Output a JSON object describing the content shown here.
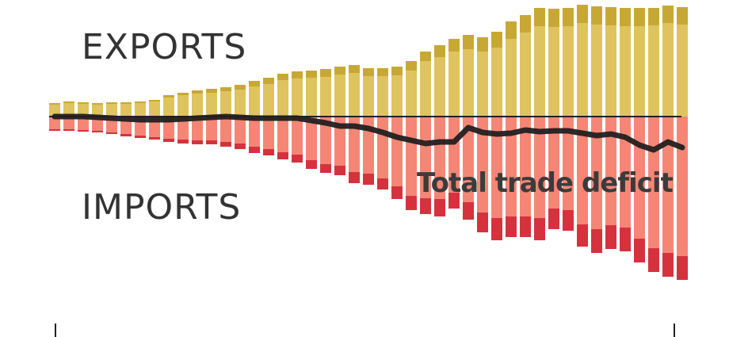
{
  "chart_data": {
    "type": "bar",
    "x": [
      0,
      1,
      2,
      3,
      4,
      5,
      6,
      7,
      8,
      9,
      10,
      11,
      12,
      13,
      14,
      15,
      16,
      17,
      18,
      19,
      20,
      21,
      22,
      23,
      24,
      25,
      26,
      27,
      28,
      29,
      30,
      31,
      32,
      33,
      34,
      35,
      36,
      37,
      38,
      39,
      40,
      41,
      42,
      43,
      44
    ],
    "series": [
      {
        "name": "EXPORTS",
        "role": "exports_base",
        "color": "#dfc35f",
        "values": [
          15,
          17,
          16,
          15,
          16,
          16,
          17,
          19,
          24,
          27,
          29,
          30,
          32,
          34,
          38,
          41,
          46,
          48,
          49,
          50,
          53,
          55,
          51,
          51,
          52,
          58,
          70,
          75,
          82,
          85,
          82,
          87,
          98,
          106,
          114,
          113,
          114,
          118,
          116,
          115,
          114,
          114,
          115,
          118,
          116
        ]
      },
      {
        "name": "EXPORTS",
        "role": "exports_top",
        "color": "#c8a835",
        "values": [
          2,
          2,
          2,
          2,
          2,
          2,
          2,
          2,
          3,
          3,
          4,
          5,
          5,
          6,
          7,
          8,
          8,
          9,
          9,
          10,
          10,
          10,
          10,
          10,
          11,
          12,
          12,
          15,
          16,
          18,
          18,
          20,
          22,
          22,
          23,
          23,
          23,
          23,
          23,
          23,
          23,
          23,
          22,
          22,
          22
        ]
      },
      {
        "name": "IMPORTS",
        "role": "imports_base",
        "color": "#f58676",
        "values": [
          -16,
          -16,
          -17,
          -18,
          -20,
          -22,
          -24,
          -26,
          -28,
          -29,
          -30,
          -30,
          -32,
          -34,
          -38,
          -41,
          -45,
          -48,
          -55,
          -60,
          -62,
          -70,
          -72,
          -78,
          -88,
          -100,
          -103,
          -104,
          -96,
          -108,
          -121,
          -128,
          -126,
          -126,
          -128,
          -116,
          -118,
          -136,
          -142,
          -137,
          -140,
          -154,
          -166,
          -172,
          -176
        ]
      },
      {
        "name": "IMPORTS",
        "role": "imports_top",
        "color": "#d5323e",
        "values": [
          -2,
          -2,
          -2,
          -2,
          -2,
          -3,
          -3,
          -3,
          -4,
          -5,
          -5,
          -5,
          -6,
          -7,
          -8,
          -8,
          -9,
          -10,
          -11,
          -11,
          -12,
          -14,
          -14,
          -14,
          -16,
          -18,
          -20,
          -22,
          -20,
          -22,
          -25,
          -28,
          -26,
          -26,
          -28,
          -26,
          -26,
          -28,
          -30,
          -30,
          -30,
          -30,
          -30,
          -30,
          -30
        ]
      },
      {
        "name": "Total trade deficit",
        "role": "deficit_line",
        "color": "#231f20",
        "x": [
          0,
          2,
          4,
          6,
          8,
          10,
          12,
          14,
          16,
          17,
          18,
          19,
          20,
          21,
          22,
          23,
          24,
          25,
          26,
          27,
          28,
          29,
          30,
          31,
          32,
          33,
          34,
          35,
          36,
          37,
          38,
          39,
          40,
          41,
          42,
          43,
          44
        ],
        "values": [
          0,
          0,
          -2,
          -4,
          -4,
          -2,
          0,
          -2,
          -2,
          -2,
          -5,
          -8,
          -12,
          -12,
          -15,
          -20,
          -26,
          -30,
          -34,
          -32,
          -32,
          -14,
          -20,
          -22,
          -21,
          -17,
          -19,
          -18,
          -18,
          -21,
          -24,
          -22,
          -26,
          -36,
          -42,
          -32,
          -39
        ]
      }
    ],
    "labels": {
      "exports": "EXPORTS",
      "imports": "IMPORTS",
      "deficit": "Total trade deficit"
    },
    "title": "",
    "xlabel": "",
    "ylabel": "",
    "ylim": [
      -215,
      180
    ],
    "grid": false,
    "legend": "none"
  }
}
